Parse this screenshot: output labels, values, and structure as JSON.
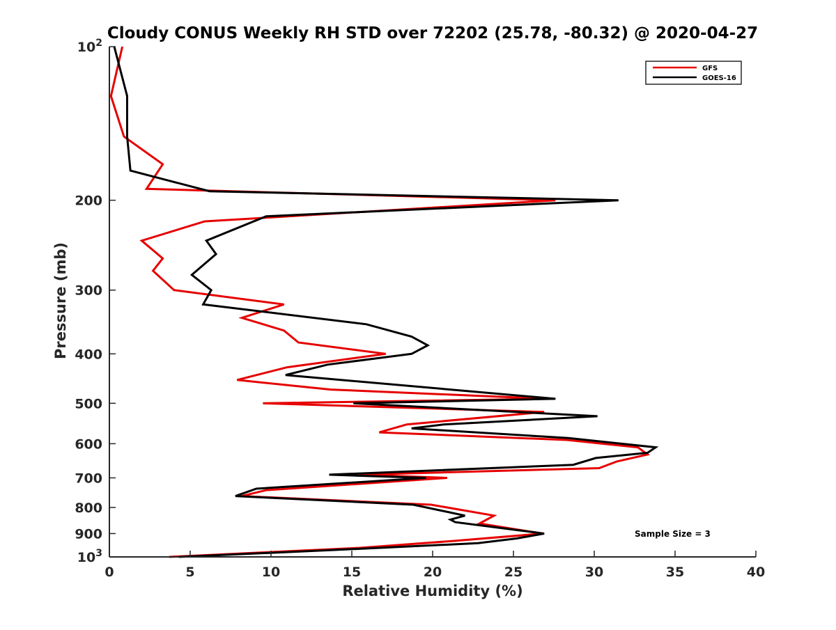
{
  "chart_data": {
    "type": "line",
    "title": "Cloudy CONUS Weekly RH STD over 72202 (25.78, -80.32) @ 2020-04-27",
    "xlabel": "Relative Humidity (%)",
    "ylabel": "Pressure (mb)",
    "xlim": [
      0,
      40
    ],
    "ylim": [
      100,
      1000
    ],
    "yscale": "log",
    "y_reversed": true,
    "grid": false,
    "legend_position": "top-right",
    "x_ticks": [
      {
        "value": 0,
        "label": "0"
      },
      {
        "value": 5,
        "label": "5"
      },
      {
        "value": 10,
        "label": "10"
      },
      {
        "value": 15,
        "label": "15"
      },
      {
        "value": 20,
        "label": "20"
      },
      {
        "value": 25,
        "label": "25"
      },
      {
        "value": 30,
        "label": "30"
      },
      {
        "value": 35,
        "label": "35"
      },
      {
        "value": 40,
        "label": "40"
      }
    ],
    "y_ticks": [
      {
        "value": 100,
        "label": "10",
        "sup": "2"
      },
      {
        "value": 200,
        "label": "200"
      },
      {
        "value": 300,
        "label": "300"
      },
      {
        "value": 400,
        "label": "400"
      },
      {
        "value": 500,
        "label": "500"
      },
      {
        "value": 600,
        "label": "600"
      },
      {
        "value": 700,
        "label": "700"
      },
      {
        "value": 800,
        "label": "800"
      },
      {
        "value": 900,
        "label": "900"
      },
      {
        "value": 1000,
        "label": "10",
        "sup": "3"
      }
    ],
    "series": [
      {
        "name": "GFS",
        "color": "#e60000",
        "points": [
          [
            0.8,
            100
          ],
          [
            0.1,
            125
          ],
          [
            0.9,
            150
          ],
          [
            3.3,
            170
          ],
          [
            2.3,
            190
          ],
          [
            27.6,
            200
          ],
          [
            5.9,
            220
          ],
          [
            2.0,
            240
          ],
          [
            3.3,
            260
          ],
          [
            2.7,
            275
          ],
          [
            4.0,
            300
          ],
          [
            10.8,
            320
          ],
          [
            8.2,
            340
          ],
          [
            10.8,
            360
          ],
          [
            11.7,
            380
          ],
          [
            17.1,
            400
          ],
          [
            11.0,
            425
          ],
          [
            7.9,
            450
          ],
          [
            13.7,
            470
          ],
          [
            27.2,
            490
          ],
          [
            9.5,
            500
          ],
          [
            26.9,
            520
          ],
          [
            18.4,
            550
          ],
          [
            16.7,
            570
          ],
          [
            28.3,
            590
          ],
          [
            32.7,
            610
          ],
          [
            33.3,
            630
          ],
          [
            31.4,
            650
          ],
          [
            30.3,
            670
          ],
          [
            15.5,
            690
          ],
          [
            20.9,
            700
          ],
          [
            9.7,
            740
          ],
          [
            8.2,
            760
          ],
          [
            19.9,
            790
          ],
          [
            23.8,
            830
          ],
          [
            22.9,
            860
          ],
          [
            26.8,
            900
          ],
          [
            21.4,
            930
          ],
          [
            15.5,
            960
          ],
          [
            3.7,
            1000
          ]
        ]
      },
      {
        "name": "GOES-16",
        "color": "#000000",
        "points": [
          [
            0.3,
            100
          ],
          [
            1.1,
            125
          ],
          [
            1.1,
            150
          ],
          [
            1.3,
            175
          ],
          [
            6.2,
            192
          ],
          [
            31.5,
            200
          ],
          [
            9.7,
            215
          ],
          [
            6.0,
            240
          ],
          [
            6.6,
            255
          ],
          [
            5.1,
            280
          ],
          [
            6.3,
            300
          ],
          [
            5.8,
            320
          ],
          [
            15.9,
            350
          ],
          [
            18.7,
            370
          ],
          [
            19.7,
            385
          ],
          [
            18.7,
            400
          ],
          [
            13.5,
            420
          ],
          [
            10.9,
            440
          ],
          [
            27.6,
            490
          ],
          [
            15.1,
            500
          ],
          [
            30.2,
            530
          ],
          [
            20.7,
            550
          ],
          [
            18.7,
            560
          ],
          [
            28.4,
            585
          ],
          [
            33.8,
            610
          ],
          [
            33.3,
            625
          ],
          [
            30.1,
            640
          ],
          [
            28.7,
            660
          ],
          [
            13.6,
            690
          ],
          [
            19.6,
            700
          ],
          [
            9.1,
            735
          ],
          [
            7.8,
            760
          ],
          [
            18.8,
            790
          ],
          [
            22.0,
            830
          ],
          [
            21.1,
            845
          ],
          [
            21.4,
            855
          ],
          [
            26.9,
            900
          ],
          [
            25.2,
            920
          ],
          [
            22.8,
            940
          ],
          [
            13.7,
            970
          ],
          [
            4.3,
            1000
          ]
        ]
      }
    ],
    "annotation": "Sample Size = 3"
  }
}
